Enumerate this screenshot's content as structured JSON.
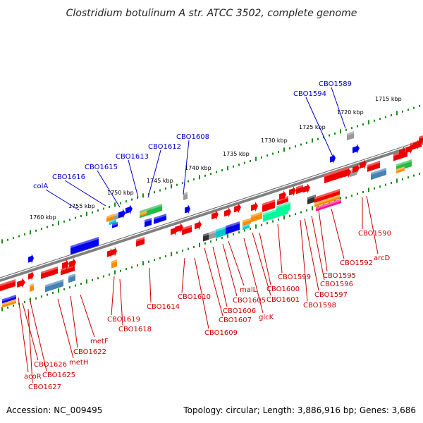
{
  "title": "Clostridium botulinum A str. ATCC 3502, complete genome",
  "footer": {
    "accession": "Accession: NC_009495",
    "stats": "Topology: circular; Length: 3,886,916 bp; Genes: 3,686"
  },
  "colors": {
    "backbone": "#808080",
    "forward": "#0000ee",
    "reverse": "#ee0000",
    "label_forward": "#0000c8",
    "label_reverse": "#c80000",
    "tick_ring": "#1e8c1e",
    "gene_colors": [
      "#ee0000",
      "#0000ee",
      "#22bb44",
      "#00c8c8",
      "#1e90ff",
      "#ff8c00",
      "#ff1493",
      "#4682b4",
      "#9a9a9a",
      "#303030",
      "#00008b",
      "#00fa9a"
    ]
  },
  "kbp_labels": [
    "1760 kbp",
    "1755 kbp",
    "1750 kbp",
    "1745 kbp",
    "1740 kbp",
    "1735 kbp",
    "1730 kbp",
    "1725 kbp",
    "1720 kbp",
    "1715 kbp"
  ],
  "labels_forward": [
    "colA",
    "CBO1616",
    "CBO1615",
    "CBO1613",
    "CBO1612",
    "CBO1608",
    "CBO1594",
    "CBO1589"
  ],
  "labels_reverse": [
    "CBO1627",
    "acoR",
    "CBO1626",
    "CBO1625",
    "metH",
    "CBO1622",
    "metF",
    "CBO1619",
    "CBO1618",
    "CBO1614",
    "CBO1610",
    "CBO1609",
    "CBO1607",
    "CBO1606",
    "CBO1605",
    "malL",
    "glcK",
    "CBO1601",
    "CBO1600",
    "CBO1599",
    "CBO1598",
    "CBO1597",
    "CBO1596",
    "CBO1595",
    "CBO1592",
    "CBO1590",
    "arcD"
  ]
}
